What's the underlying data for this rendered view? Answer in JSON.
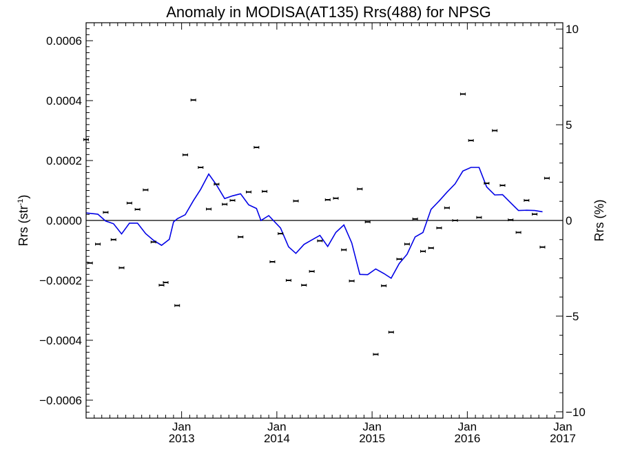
{
  "chart_data": {
    "type": "scatter",
    "title": "Anomaly in MODISA(AT135) Rrs(488) for NPSG",
    "ylabel_left": "Rrs (str",
    "ylabel_left_sup": "-1",
    "ylabel_left_close": ")",
    "ylabel_right": "Rrs (%)",
    "xlim": [
      "2012-01-01",
      "2017-01-01"
    ],
    "ylim_left": [
      -0.00066,
      0.00066
    ],
    "ylim_right": [
      -10.33,
      10.33
    ],
    "grid": false,
    "zero_line": true,
    "x_ticks": [
      {
        "date": "2013-01-01",
        "month": "Jan",
        "year": "2013"
      },
      {
        "date": "2014-01-01",
        "month": "Jan",
        "year": "2014"
      },
      {
        "date": "2015-01-01",
        "month": "Jan",
        "year": "2015"
      },
      {
        "date": "2016-01-01",
        "month": "Jan",
        "year": "2016"
      },
      {
        "date": "2017-01-01",
        "month": "Jan",
        "year": "2017"
      }
    ],
    "y_ticks_left": [
      {
        "value": 0.0006,
        "label": "0.0006"
      },
      {
        "value": 0.0004,
        "label": "0.0004"
      },
      {
        "value": 0.0002,
        "label": "0.0002"
      },
      {
        "value": 0.0,
        "label": "0.0000"
      },
      {
        "value": -0.0002,
        "label": "−0.0002"
      },
      {
        "value": -0.0004,
        "label": "−0.0004"
      },
      {
        "value": -0.0006,
        "label": "−0.0006"
      }
    ],
    "y_ticks_right": [
      {
        "value": 10,
        "label": "10"
      },
      {
        "value": 5,
        "label": "5"
      },
      {
        "value": 0,
        "label": "0"
      },
      {
        "value": -5,
        "label": "−5"
      },
      {
        "value": -10,
        "label": "−10"
      }
    ],
    "series": [
      {
        "kind": "points_with_errorbars",
        "color": "#000000",
        "points": [
          [
            "2012-01-01",
            0.00027
          ],
          [
            "2012-01-16",
            -0.000142
          ],
          [
            "2012-02-15",
            -7.9e-05
          ],
          [
            "2012-03-16",
            2.7e-05
          ],
          [
            "2012-04-15",
            -6.4e-05
          ],
          [
            "2012-05-16",
            -0.000158
          ],
          [
            "2012-06-15",
            5.8e-05
          ],
          [
            "2012-07-16",
            3.7e-05
          ],
          [
            "2012-08-16",
            0.000102
          ],
          [
            "2012-09-15",
            -7.2e-05
          ],
          [
            "2012-10-16",
            -0.000216
          ],
          [
            "2012-11-01",
            -0.000207
          ],
          [
            "2012-12-15",
            -0.000284
          ],
          [
            "2013-01-15",
            0.000219
          ],
          [
            "2013-02-15",
            0.000402
          ],
          [
            "2013-03-15",
            0.000177
          ],
          [
            "2013-04-15",
            3.8e-05
          ],
          [
            "2013-05-15",
            0.000121
          ],
          [
            "2013-06-15",
            5.4e-05
          ],
          [
            "2013-07-15",
            6.7e-05
          ],
          [
            "2013-08-15",
            -5.5e-05
          ],
          [
            "2013-09-15",
            9.5e-05
          ],
          [
            "2013-10-15",
            0.000244
          ],
          [
            "2013-11-15",
            9.7e-05
          ],
          [
            "2013-12-15",
            -0.000138
          ],
          [
            "2014-01-15",
            -4.4e-05
          ],
          [
            "2014-02-15",
            -0.0002
          ],
          [
            "2014-03-15",
            6.5e-05
          ],
          [
            "2014-04-15",
            -0.000216
          ],
          [
            "2014-05-15",
            -0.00017
          ],
          [
            "2014-06-15",
            -6.8e-05
          ],
          [
            "2014-07-15",
            6.9e-05
          ],
          [
            "2014-08-15",
            7.4e-05
          ],
          [
            "2014-09-15",
            -9.8e-05
          ],
          [
            "2014-10-15",
            -0.000202
          ],
          [
            "2014-11-15",
            0.000105
          ],
          [
            "2014-12-15",
            -5e-06
          ],
          [
            "2015-01-15",
            -0.000447
          ],
          [
            "2015-02-15",
            -0.000218
          ],
          [
            "2015-03-15",
            -0.000373
          ],
          [
            "2015-04-15",
            -0.000129
          ],
          [
            "2015-05-15",
            -7.9e-05
          ],
          [
            "2015-06-15",
            5e-06
          ],
          [
            "2015-07-15",
            -0.000103
          ],
          [
            "2015-08-15",
            -9.2e-05
          ],
          [
            "2015-09-15",
            -2.5e-05
          ],
          [
            "2015-10-15",
            4.2e-05
          ],
          [
            "2015-11-15",
            0.0
          ],
          [
            "2015-12-15",
            0.000422
          ],
          [
            "2016-01-15",
            0.000267
          ],
          [
            "2016-02-15",
            1e-05
          ],
          [
            "2016-03-15",
            0.000124
          ],
          [
            "2016-04-15",
            0.0003
          ],
          [
            "2016-05-15",
            0.000117
          ],
          [
            "2016-06-15",
            2e-06
          ],
          [
            "2016-07-15",
            -4e-05
          ],
          [
            "2016-08-15",
            6.7e-05
          ],
          [
            "2016-09-15",
            2.1e-05
          ],
          [
            "2016-10-15",
            -8.9e-05
          ],
          [
            "2016-11-01",
            0.000141
          ]
        ]
      },
      {
        "kind": "line",
        "color": "#0000e6",
        "points": [
          [
            "2012-01-01",
            2.5e-05
          ],
          [
            "2012-02-15",
            2.1e-05
          ],
          [
            "2012-03-16",
            -2e-06
          ],
          [
            "2012-04-15",
            -1.1e-05
          ],
          [
            "2012-05-16",
            -4.5e-05
          ],
          [
            "2012-06-15",
            -9e-06
          ],
          [
            "2012-07-16",
            -9e-06
          ],
          [
            "2012-08-16",
            -4.4e-05
          ],
          [
            "2012-09-15",
            -6.6e-05
          ],
          [
            "2012-10-16",
            -8.3e-05
          ],
          [
            "2012-11-15",
            -6.3e-05
          ],
          [
            "2012-12-01",
            -5e-06
          ],
          [
            "2012-12-16",
            6e-06
          ],
          [
            "2013-01-15",
            1.9e-05
          ],
          [
            "2013-02-15",
            6.6e-05
          ],
          [
            "2013-03-15",
            0.000104
          ],
          [
            "2013-04-15",
            0.000155
          ],
          [
            "2013-05-15",
            0.000118
          ],
          [
            "2013-06-15",
            7.3e-05
          ],
          [
            "2013-07-15",
            8.2e-05
          ],
          [
            "2013-08-15",
            8.9e-05
          ],
          [
            "2013-09-15",
            5.2e-05
          ],
          [
            "2013-10-15",
            4e-05
          ],
          [
            "2013-11-01",
            0.0
          ],
          [
            "2013-12-01",
            1.6e-05
          ],
          [
            "2014-01-15",
            -2.5e-05
          ],
          [
            "2014-02-15",
            -8.8e-05
          ],
          [
            "2014-03-15",
            -0.00011
          ],
          [
            "2014-04-15",
            -8e-05
          ],
          [
            "2014-05-15",
            -6.5e-05
          ],
          [
            "2014-06-15",
            -5e-05
          ],
          [
            "2014-07-15",
            -8.7e-05
          ],
          [
            "2014-08-15",
            -4e-05
          ],
          [
            "2014-09-15",
            -1.5e-05
          ],
          [
            "2014-10-15",
            -7.5e-05
          ],
          [
            "2014-11-15",
            -0.00018
          ],
          [
            "2014-12-15",
            -0.000181
          ],
          [
            "2015-01-15",
            -0.000162
          ],
          [
            "2015-02-15",
            -0.000177
          ],
          [
            "2015-03-15",
            -0.000193
          ],
          [
            "2015-04-15",
            -0.000144
          ],
          [
            "2015-05-15",
            -0.000113
          ],
          [
            "2015-06-15",
            -5.5e-05
          ],
          [
            "2015-07-15",
            -4e-05
          ],
          [
            "2015-08-15",
            3.7e-05
          ],
          [
            "2015-09-15",
            6.5e-05
          ],
          [
            "2015-10-15",
            9.4e-05
          ],
          [
            "2015-11-15",
            0.000122
          ],
          [
            "2015-12-15",
            0.000165
          ],
          [
            "2016-01-15",
            0.000177
          ],
          [
            "2016-02-15",
            0.000177
          ],
          [
            "2016-03-15",
            0.000112
          ],
          [
            "2016-04-15",
            8.5e-05
          ],
          [
            "2016-05-15",
            8.6e-05
          ],
          [
            "2016-06-15",
            5.9e-05
          ],
          [
            "2016-07-15",
            3.3e-05
          ],
          [
            "2016-08-15",
            3.4e-05
          ],
          [
            "2016-09-15",
            3.3e-05
          ],
          [
            "2016-10-15",
            2.9e-05
          ]
        ]
      }
    ]
  }
}
